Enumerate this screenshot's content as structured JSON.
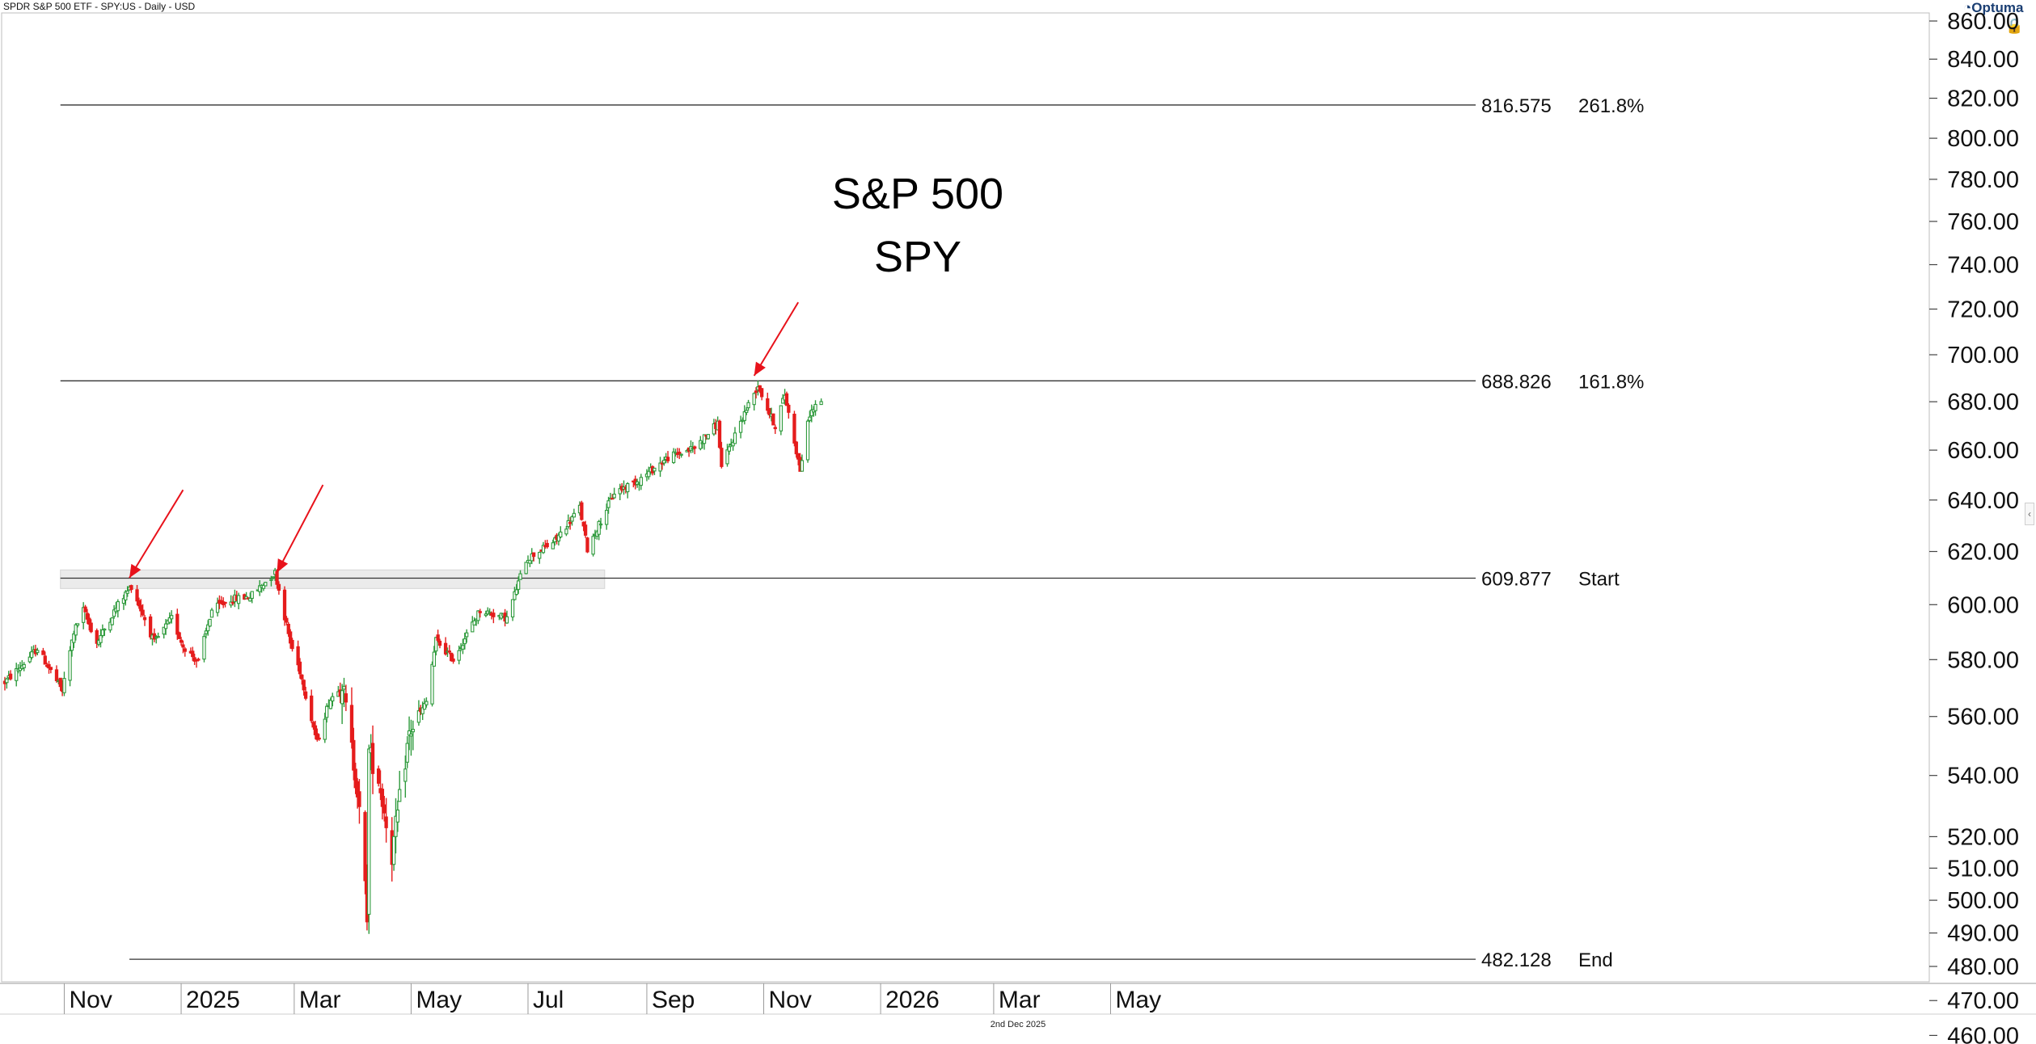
{
  "header": {
    "instrument": "SPDR S&P 500 ETF - SPY:US - Daily - USD",
    "logo": "Optuma"
  },
  "footer": {
    "date": "2nd Dec 2025"
  },
  "icons": {
    "lock": "lock-icon",
    "logo": "optuma-logo-icon",
    "collapse": "chevron-left-icon"
  },
  "chart_data": {
    "type": "candlestick",
    "title_lines": [
      "S&P 500",
      "SPY"
    ],
    "y_scale": "log",
    "ylim": [
      452,
      866
    ],
    "y_ticks": [
      "460.00",
      "470.00",
      "480.00",
      "490.00",
      "500.00",
      "510.00",
      "520.00",
      "540.00",
      "560.00",
      "580.00",
      "600.00",
      "620.00",
      "640.00",
      "660.00",
      "680.00",
      "700.00",
      "720.00",
      "740.00",
      "760.00",
      "780.00",
      "800.00",
      "820.00",
      "840.00",
      "860.00"
    ],
    "x_tick_labels": [
      "Nov",
      "2025",
      "Mar",
      "May",
      "Jul",
      "Sep",
      "Nov",
      "2026",
      "Mar",
      "May"
    ],
    "price_path": [
      [
        "2024-10-01",
        572
      ],
      [
        "2024-10-10",
        578
      ],
      [
        "2024-10-18",
        584
      ],
      [
        "2024-10-31",
        569
      ],
      [
        "2024-11-06",
        590
      ],
      [
        "2024-11-11",
        598
      ],
      [
        "2024-11-18",
        586
      ],
      [
        "2024-11-29",
        600
      ],
      [
        "2024-12-06",
        607
      ],
      [
        "2024-12-18",
        586
      ],
      [
        "2024-12-27",
        595
      ],
      [
        "2025-01-02",
        585
      ],
      [
        "2025-01-10",
        579
      ],
      [
        "2025-01-17",
        598
      ],
      [
        "2025-01-27",
        602
      ],
      [
        "2025-02-06",
        603
      ],
      [
        "2025-02-19",
        612
      ],
      [
        "2025-02-27",
        586
      ],
      [
        "2025-03-04",
        576
      ],
      [
        "2025-03-13",
        551
      ],
      [
        "2025-03-19",
        565
      ],
      [
        "2025-03-26",
        572
      ],
      [
        "2025-04-03",
        535
      ],
      [
        "2025-04-08",
        496
      ],
      [
        "2025-04-09",
        548
      ],
      [
        "2025-04-14",
        539
      ],
      [
        "2025-04-21",
        514
      ],
      [
        "2025-04-30",
        554
      ],
      [
        "2025-05-09",
        565
      ],
      [
        "2025-05-14",
        587
      ],
      [
        "2025-05-23",
        580
      ],
      [
        "2025-06-06",
        598
      ],
      [
        "2025-06-20",
        595
      ],
      [
        "2025-06-30",
        617
      ],
      [
        "2025-07-15",
        624
      ],
      [
        "2025-07-28",
        637
      ],
      [
        "2025-08-01",
        621
      ],
      [
        "2025-08-15",
        643
      ],
      [
        "2025-08-28",
        648
      ],
      [
        "2025-09-12",
        657
      ],
      [
        "2025-09-26",
        661
      ],
      [
        "2025-10-08",
        671
      ],
      [
        "2025-10-10",
        653
      ],
      [
        "2025-10-20",
        672
      ],
      [
        "2025-10-29",
        687
      ],
      [
        "2025-11-04",
        675
      ],
      [
        "2025-11-07",
        670
      ],
      [
        "2025-11-12",
        683
      ],
      [
        "2025-11-20",
        652
      ],
      [
        "2025-11-25",
        675
      ],
      [
        "2025-12-01",
        681
      ]
    ],
    "levels": [
      {
        "value": 816.575,
        "label_value": "816.575",
        "label": "261.8%",
        "x_start": "2024-10-30"
      },
      {
        "value": 688.826,
        "label_value": "688.826",
        "label": "161.8%",
        "x_start": "2024-10-30"
      },
      {
        "value": 609.877,
        "label_value": "609.877",
        "label": "Start",
        "x_start": "2024-10-30"
      },
      {
        "value": 482.128,
        "label_value": "482.128",
        "label": "End",
        "x_start": "2024-12-05"
      }
    ],
    "support_zone": {
      "low": 606,
      "high": 613,
      "from": "2024-10-30",
      "to": "2025-08-10"
    },
    "arrows": [
      {
        "from": [
          "2025-01-02",
          644
        ],
        "to": [
          "2024-12-05",
          610
        ]
      },
      {
        "from": [
          "2025-03-16",
          646
        ],
        "to": [
          "2025-02-20",
          612
        ]
      },
      {
        "from": [
          "2025-11-19",
          723
        ],
        "to": [
          "2025-10-27",
          691
        ]
      }
    ],
    "colors": {
      "up": "#2e9a3c",
      "down": "#e51c1c",
      "arrow": "#e8121b",
      "level": "#333333"
    }
  }
}
